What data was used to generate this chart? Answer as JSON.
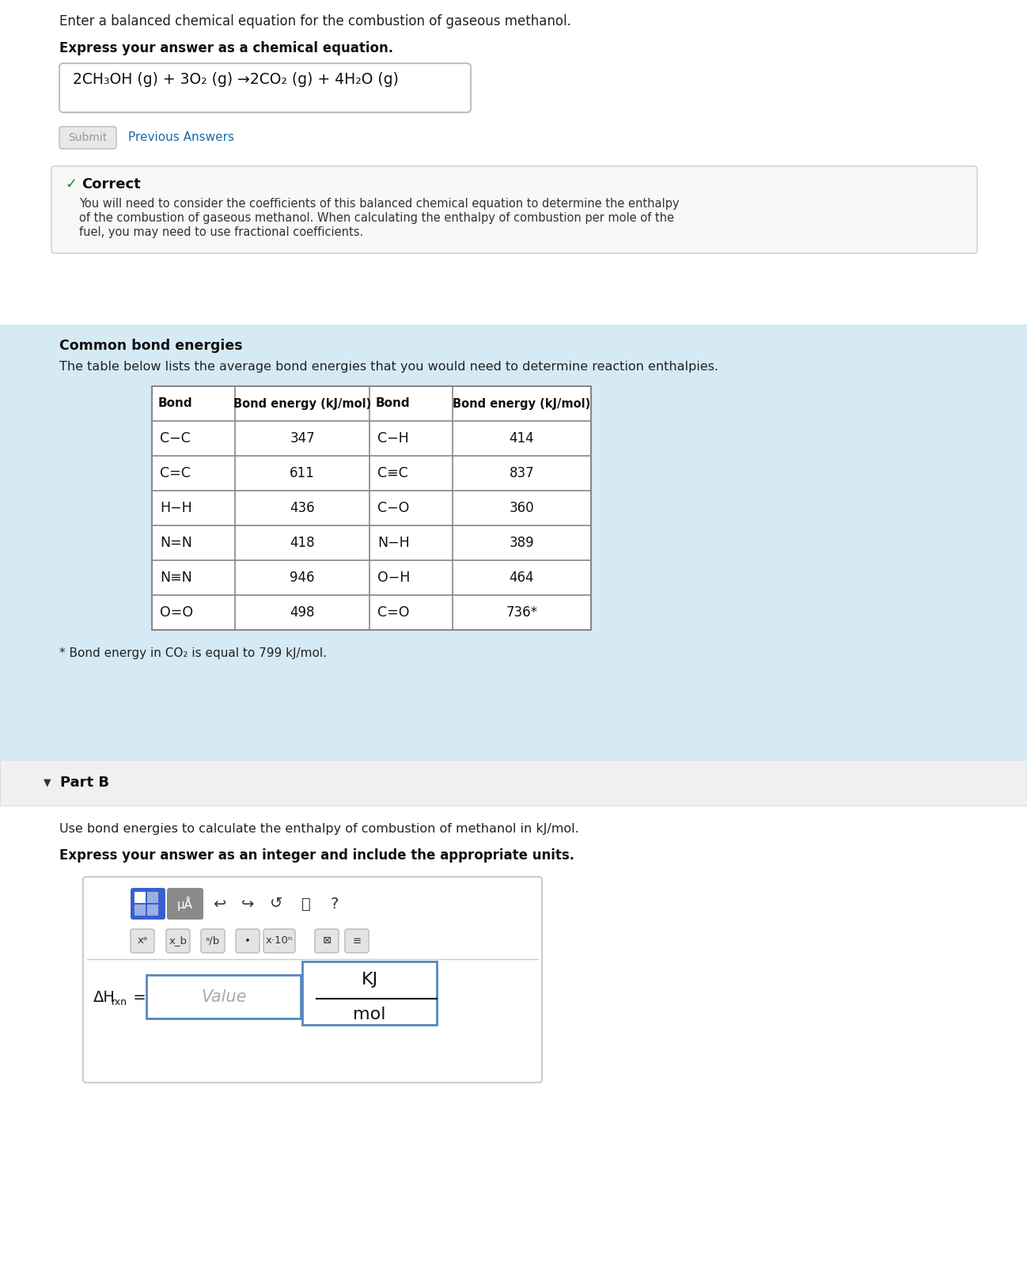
{
  "bg_color": "#ffffff",
  "light_blue_bg": "#d6eaf5",
  "part_b_bg": "#f0f0f0",
  "part_b_border": "#dddddd",
  "blue_link_color": "#1a6ca8",
  "green_check_color": "#2e7d32",
  "correct_box_bg": "#f5f5f5",
  "correct_box_border": "#cccccc",
  "toolbar_blue": "#3a5fcd",
  "toolbar_gray_bg": "#9e9e9e",
  "input_border": "#5588bb",
  "table_bonds_left": [
    "C−C",
    "C=C",
    "H−H",
    "N=N",
    "N≡N",
    "O=O"
  ],
  "table_energies_left": [
    "347",
    "611",
    "436",
    "418",
    "946",
    "498"
  ],
  "table_bonds_right": [
    "C−H",
    "C≡C",
    "C−O",
    "N−H",
    "O−H",
    "C=O"
  ],
  "table_energies_right": [
    "414",
    "837",
    "360",
    "389",
    "464",
    "736*"
  ],
  "line1": "Enter a balanced chemical equation for the combustion of gaseous methanol.",
  "line2_bold": "Express your answer as a chemical equation.",
  "equation": "2CH₃OH (g) + 3O₂ (g) →2CO₂ (g) + 4H₂O (g)",
  "submit_text": "Submit",
  "prev_answers": "Previous Answers",
  "correct_title": "Correct",
  "correct_body1": "You will need to consider the coefficients of this balanced chemical equation to determine the enthalpy",
  "correct_body2": "of the combustion of gaseous methanol. When calculating the enthalpy of combustion per mole of the",
  "correct_body3": "fuel, you may need to use fractional coefficients.",
  "common_bond_title": "Common bond energies",
  "table_desc": "The table below lists the average bond energies that you would need to determine reaction enthalpies.",
  "part_b_label": "Part B",
  "part_b_desc": "Use bond energies to calculate the enthalpy of combustion of methanol in kJ/mol.",
  "part_b_bold": "Express your answer as an integer and include the appropriate units.",
  "value_placeholder": "Value"
}
